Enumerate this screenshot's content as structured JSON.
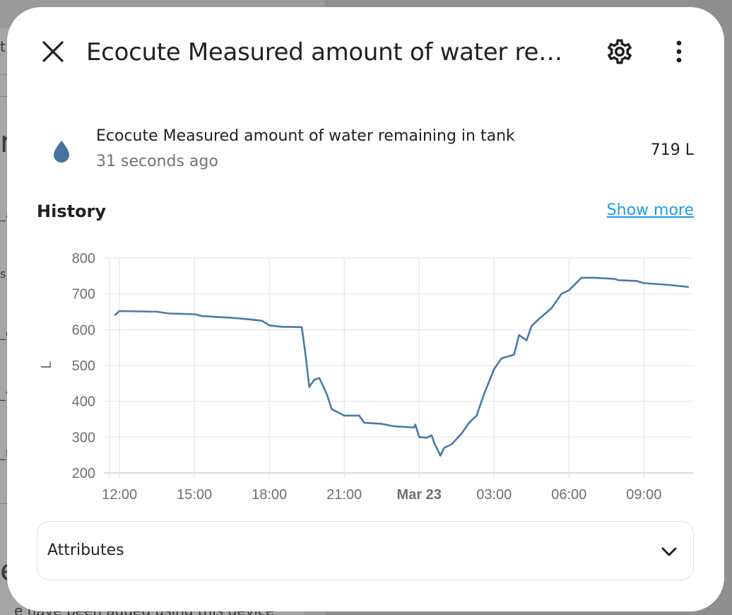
{
  "background": {
    "fragments": [
      "t",
      "m",
      "_a",
      "s",
      "_c",
      "_v",
      "_t",
      "e",
      "e have been added using this device"
    ]
  },
  "dialog": {
    "title": "Ecocute Measured amount of water re…",
    "close_icon": "close-icon",
    "settings_icon": "gear-icon",
    "more_icon": "more-vertical-icon"
  },
  "entity": {
    "icon": "water-drop-icon",
    "name": "Ecocute Measured amount of water remaining in tank",
    "last_changed": "31 seconds ago",
    "state": "719 L"
  },
  "history": {
    "title": "History",
    "show_more_label": "Show more"
  },
  "chart_data": {
    "type": "line",
    "ylabel": "L",
    "ylim": [
      200,
      800
    ],
    "yticks": [
      200,
      300,
      400,
      500,
      600,
      700,
      800
    ],
    "xtick_labels": [
      "12:00",
      "15:00",
      "18:00",
      "21:00",
      "Mar 23",
      "03:00",
      "06:00",
      "09:00"
    ],
    "xtick_bold": [
      "Mar 23"
    ],
    "x_hours": [
      11.8,
      12.0,
      13.5,
      14.0,
      15.0,
      15.3,
      16.5,
      17.0,
      17.7,
      18.0,
      18.5,
      19.3,
      19.45,
      19.6,
      19.8,
      20.0,
      20.3,
      20.5,
      21.0,
      21.6,
      21.8,
      22.5,
      23.0,
      23.8,
      23.85,
      24.0,
      24.3,
      24.5,
      24.6,
      24.85,
      25.0,
      25.3,
      25.7,
      26.0,
      26.3,
      26.6,
      27.0,
      27.3,
      27.8,
      28.0,
      28.3,
      28.5,
      28.8,
      29.3,
      29.7,
      30.0,
      30.5,
      31.0,
      31.8,
      32.0,
      32.7,
      33.0,
      34.0,
      34.8
    ],
    "values": [
      640,
      652,
      650,
      645,
      643,
      638,
      633,
      630,
      625,
      612,
      608,
      607,
      530,
      440,
      460,
      465,
      420,
      378,
      360,
      360,
      340,
      337,
      330,
      327,
      335,
      300,
      298,
      305,
      285,
      248,
      270,
      280,
      310,
      340,
      360,
      420,
      490,
      520,
      530,
      585,
      570,
      610,
      630,
      660,
      700,
      710,
      745,
      745,
      742,
      738,
      736,
      730,
      725,
      719
    ],
    "series": [
      {
        "color": "#4a7aa8"
      }
    ],
    "grid": true
  },
  "attributes": {
    "label": "Attributes",
    "chevron_icon": "chevron-down-icon"
  }
}
